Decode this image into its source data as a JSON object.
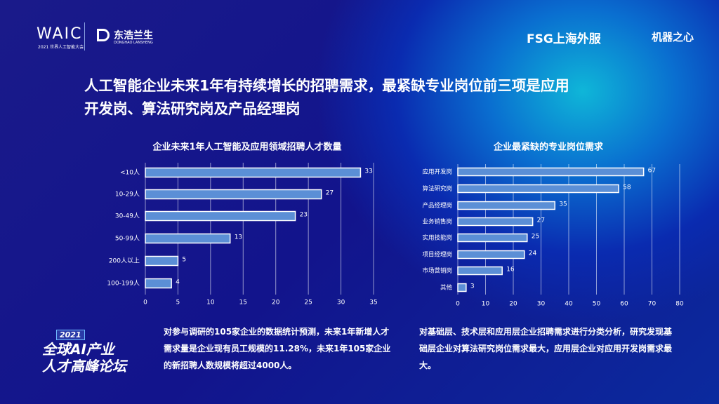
{
  "header": {
    "waic": "WAIC",
    "waic_sub": "2021 世界人工智能大会",
    "donghao": "东浩兰生",
    "donghao_sub": "DONGHAO LANSHENG",
    "fsg": "FSG上海外服",
    "jqzx": "机器之心"
  },
  "headline": "人工智能企业未来1年有持续增长的招聘需求，最紧缺专业岗位前三项是应用开发岗、算法研究岗及产品经理岗",
  "forum": {
    "year": "2021",
    "line1": "全球AI产业",
    "line2": "人才高峰论坛"
  },
  "notes": [
    "对参与调研的105家企业的数据统计预测，未来1年新增人才需求量是企业现有员工规模的11.28%，未来1年105家企业的新招聘人数规模将超过4000人。",
    "对基础层、技术层和应用层企业招聘需求进行分类分析，研究发现基础层企业对算法研究岗位需求最大，应用层企业对应用开发岗需求最大。"
  ],
  "chart_data": [
    {
      "type": "bar",
      "orientation": "horizontal",
      "title": "企业未来1年人工智能及应用领域招聘人才数量",
      "categories": [
        "<10人",
        "10-29人",
        "30-49人",
        "50-99人",
        "200人以上",
        "100-199人"
      ],
      "values": [
        33,
        27,
        23,
        13,
        5,
        4
      ],
      "color": "#5b8fd6",
      "xlim": [
        0,
        35
      ],
      "xticks": [
        0,
        5,
        10,
        15,
        20,
        25,
        30,
        35
      ],
      "grid": true
    },
    {
      "type": "bar",
      "orientation": "horizontal",
      "title": "企业最紧缺的专业岗位需求",
      "categories": [
        "应用开发岗",
        "算法研究岗",
        "产品经理岗",
        "业务销售岗",
        "实用技能岗",
        "项目经理岗",
        "市场营销岗",
        "其他"
      ],
      "values": [
        67,
        58,
        35,
        27,
        25,
        24,
        16,
        3
      ],
      "color": "#5b8fd6",
      "xlim": [
        0,
        80
      ],
      "xticks": [
        0,
        10,
        20,
        30,
        40,
        50,
        60,
        70,
        80
      ],
      "grid": true
    }
  ]
}
